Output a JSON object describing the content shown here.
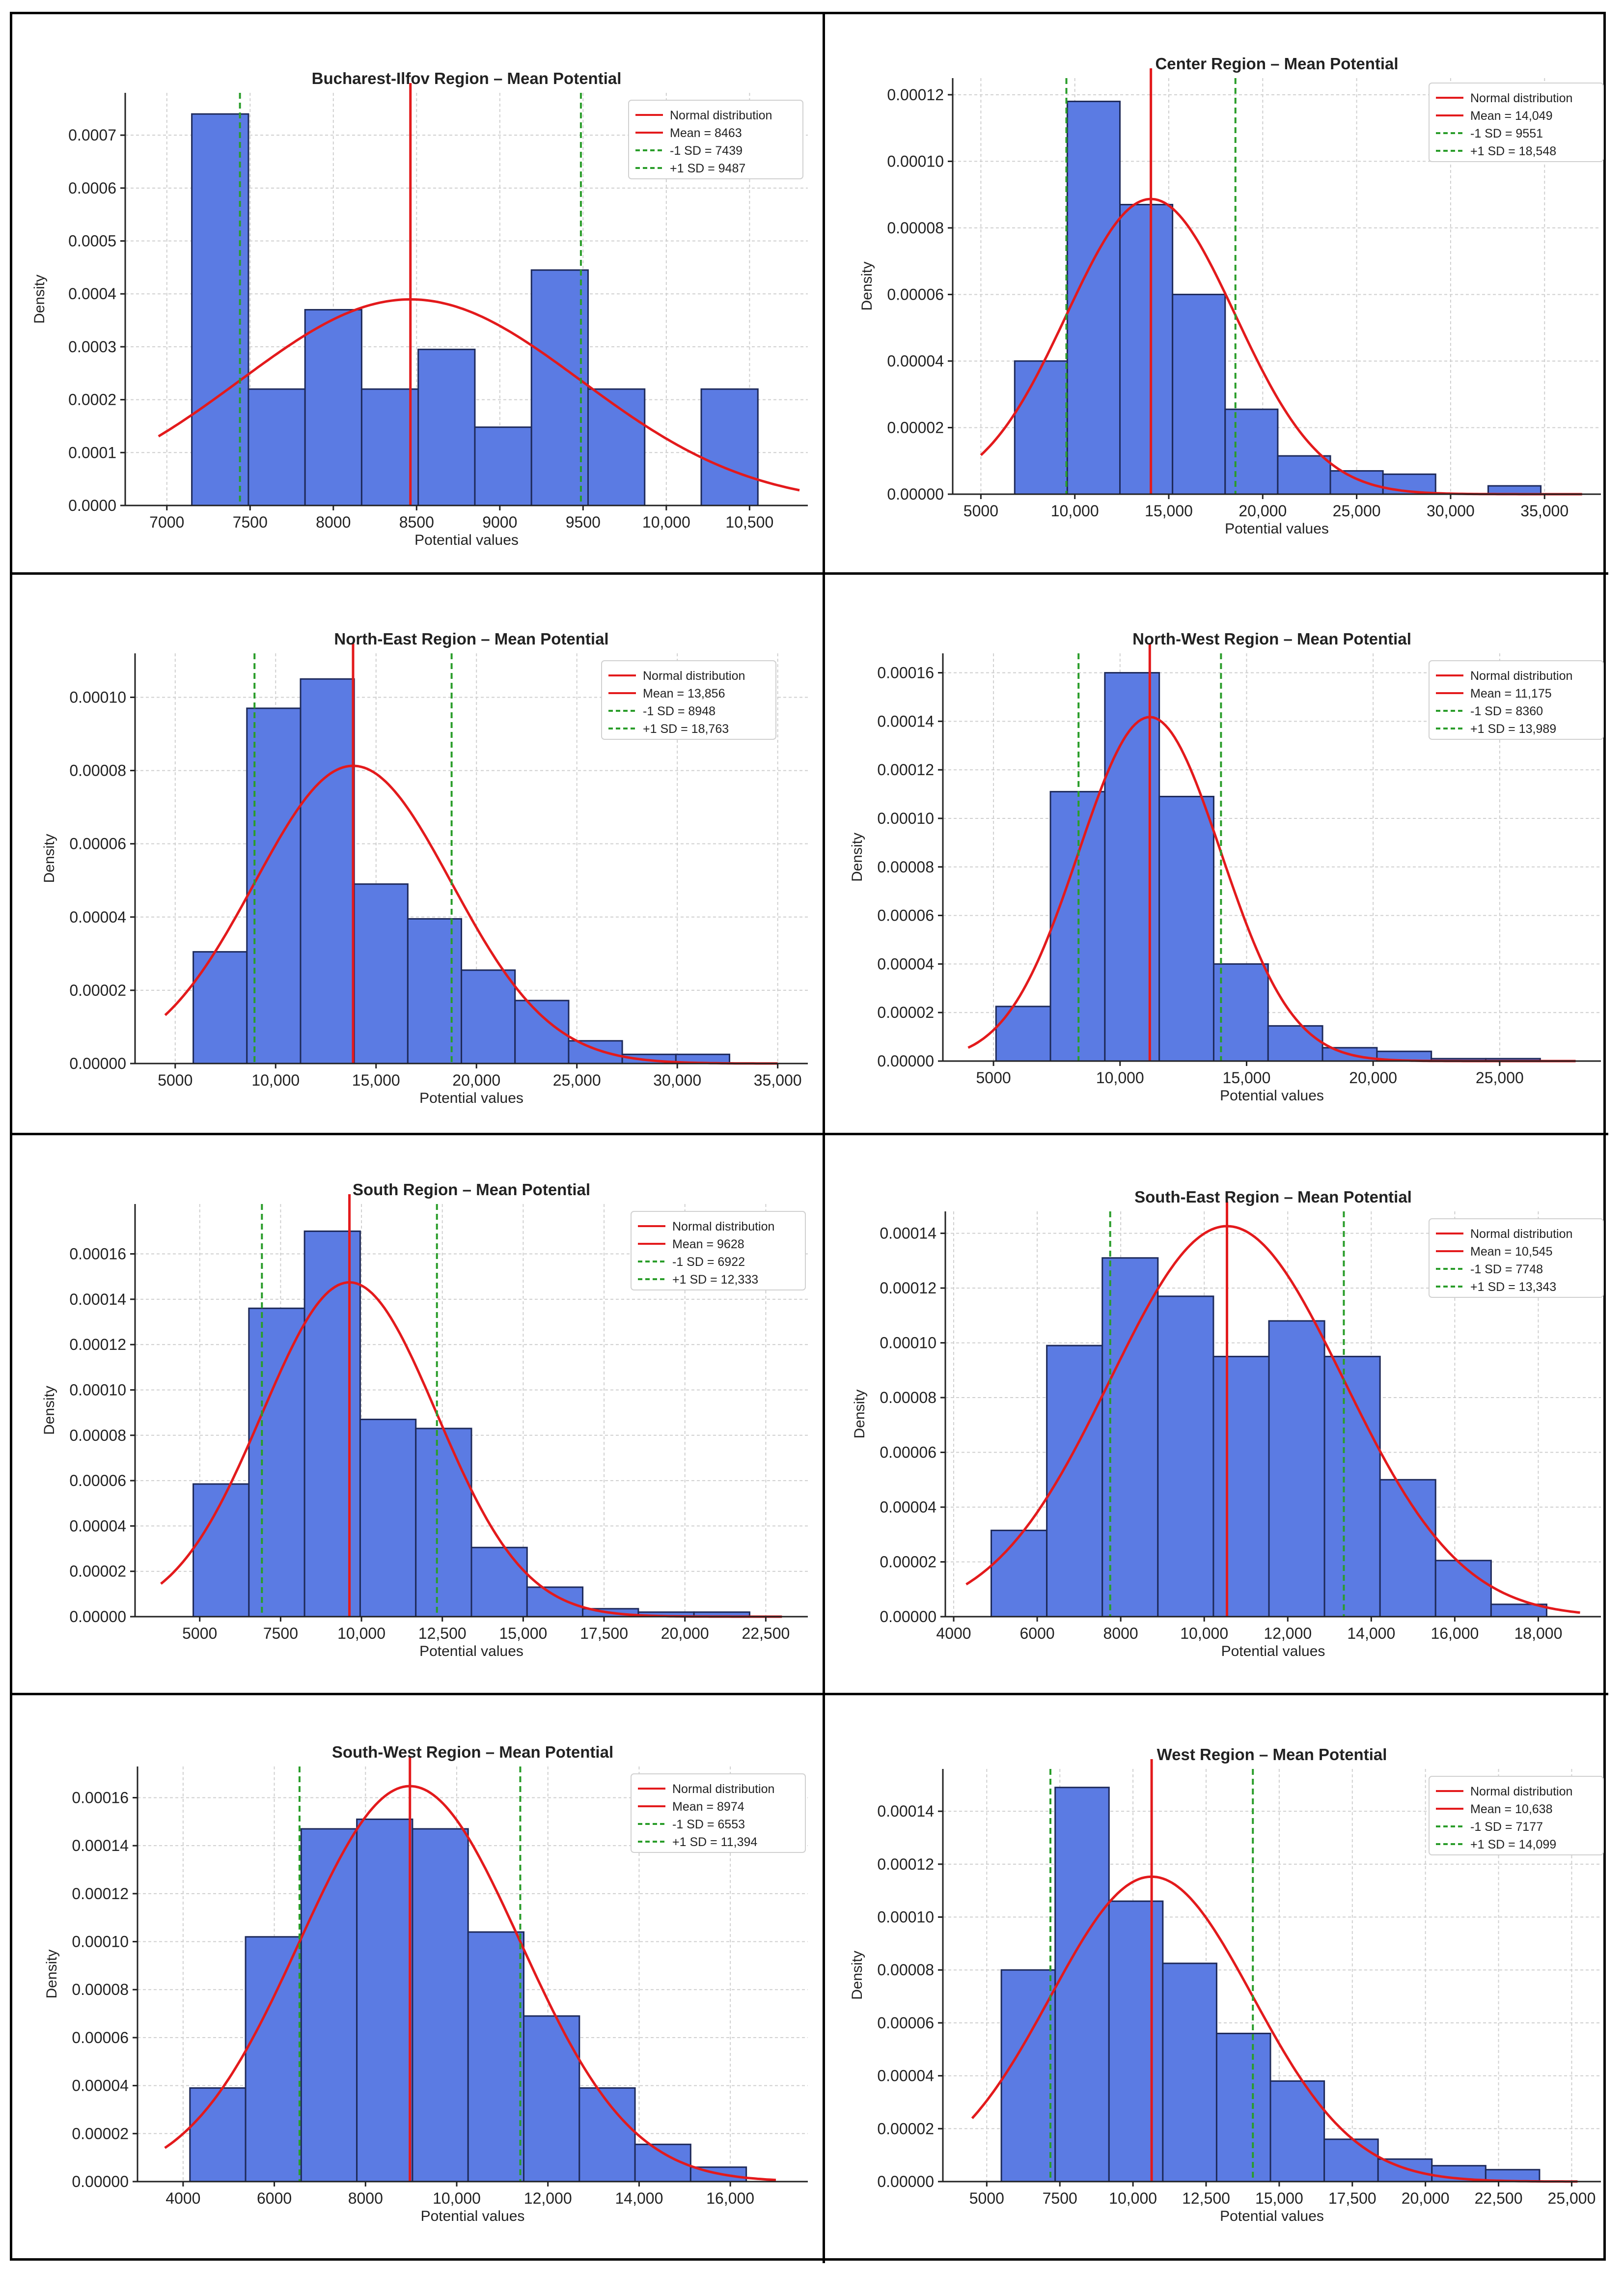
{
  "colors": {
    "bar": "#5b7be3",
    "bar_edge": "#1e2a5a",
    "normal": "#e31a1c",
    "sd": "#2a9d2a",
    "grid": "#cfcfcf"
  },
  "legend_labels": {
    "normal": "Normal distribution"
  },
  "chart_data": [
    {
      "type": "bar",
      "title": "Bucharest-Ilfov Region – Mean Potential",
      "xlabel": "Potential values",
      "ylabel": "Density",
      "xlim": [
        6750,
        10850
      ],
      "ylim": [
        0,
        0.00078
      ],
      "xticks": [
        7000,
        7500,
        8000,
        8500,
        9000,
        9500,
        10000,
        10500
      ],
      "xtick_labels": [
        "7000",
        "7500",
        "8000",
        "8500",
        "9000",
        "9500",
        "10,000",
        "10,500"
      ],
      "yticks": [
        0,
        0.0001,
        0.0002,
        0.0003,
        0.0004,
        0.0005,
        0.0006,
        0.0007
      ],
      "ytick_labels": [
        "0.0000",
        "0.0001",
        "0.0002",
        "0.0003",
        "0.0004",
        "0.0005",
        "0.0006",
        "0.0007"
      ],
      "bin_edges": [
        7150,
        7490,
        7830,
        8170,
        8510,
        8850,
        9190,
        9530,
        9870,
        10210,
        10550
      ],
      "values": [
        0.00074,
        0.00022,
        0.00037,
        0.00022,
        0.000295,
        0.000148,
        0.000445,
        0.00022,
        0,
        0.00022
      ],
      "mean": 8463,
      "sd_minus": 7439,
      "sd_plus": 9487,
      "curve": [
        6950,
        10800
      ],
      "legend": [
        "Normal distribution",
        "Mean = 8463",
        "-1 SD = 7439",
        "+1 SD = 9487"
      ]
    },
    {
      "type": "bar",
      "title": "Center Region – Mean Potential",
      "xlabel": "Potential values",
      "ylabel": "Density",
      "xlim": [
        3500,
        38000
      ],
      "ylim": [
        0,
        0.000125
      ],
      "xticks": [
        5000,
        10000,
        15000,
        20000,
        25000,
        30000,
        35000
      ],
      "xtick_labels": [
        "5000",
        "10,000",
        "15,000",
        "20,000",
        "25,000",
        "30,000",
        "35,000"
      ],
      "yticks": [
        0,
        2e-05,
        4e-05,
        6e-05,
        8e-05,
        0.0001,
        0.00012
      ],
      "ytick_labels": [
        "0.00000",
        "0.00002",
        "0.00004",
        "0.00006",
        "0.00008",
        "0.00010",
        "0.00012"
      ],
      "bin_edges": [
        6800,
        9600,
        12400,
        15200,
        18000,
        20800,
        23600,
        26400,
        29200,
        32000,
        34800
      ],
      "values": [
        4e-05,
        0.000118,
        8.7e-05,
        6e-05,
        2.55e-05,
        1.15e-05,
        7e-06,
        6e-06,
        0,
        2.5e-06
      ],
      "mean": 14049,
      "sd_minus": 9551,
      "sd_plus": 18548,
      "curve": [
        5000,
        37000
      ],
      "legend": [
        "Normal distribution",
        "Mean = 14,049",
        "-1 SD = 9551",
        "+1 SD = 18,548"
      ]
    },
    {
      "type": "bar",
      "title": "North-East Region – Mean Potential",
      "xlabel": "Potential values",
      "ylabel": "Density",
      "xlim": [
        3000,
        36500
      ],
      "ylim": [
        0,
        0.000112
      ],
      "xticks": [
        5000,
        10000,
        15000,
        20000,
        25000,
        30000,
        35000
      ],
      "xtick_labels": [
        "5000",
        "10,000",
        "15,000",
        "20,000",
        "25,000",
        "30,000",
        "35,000"
      ],
      "yticks": [
        0,
        2e-05,
        4e-05,
        6e-05,
        8e-05,
        0.0001
      ],
      "ytick_labels": [
        "0.00000",
        "0.00002",
        "0.00004",
        "0.00006",
        "0.00008",
        "0.00010"
      ],
      "bin_edges": [
        5900,
        8570,
        11240,
        13910,
        16580,
        19250,
        21920,
        24590,
        27260,
        29930,
        32600
      ],
      "values": [
        3.05e-05,
        9.7e-05,
        0.000105,
        4.9e-05,
        3.95e-05,
        2.55e-05,
        1.72e-05,
        6.2e-06,
        2.5e-06,
        2.5e-06
      ],
      "mean": 13856,
      "sd_minus": 8948,
      "sd_plus": 18763,
      "curve": [
        4500,
        35000
      ],
      "legend": [
        "Normal distribution",
        "Mean = 13,856",
        "-1 SD = 8948",
        "+1 SD = 18,763"
      ]
    },
    {
      "type": "bar",
      "title": "North-West Region – Mean Potential",
      "xlabel": "Potential values",
      "ylabel": "Density",
      "xlim": [
        3000,
        29000
      ],
      "ylim": [
        0,
        0.000168
      ],
      "xticks": [
        5000,
        10000,
        15000,
        20000,
        25000
      ],
      "xtick_labels": [
        "5000",
        "10,000",
        "15,000",
        "20,000",
        "25,000"
      ],
      "yticks": [
        0,
        2e-05,
        4e-05,
        6e-05,
        8e-05,
        0.0001,
        0.00012,
        0.00014,
        0.00016
      ],
      "ytick_labels": [
        "0.00000",
        "0.00002",
        "0.00004",
        "0.00006",
        "0.00008",
        "0.00010",
        "0.00012",
        "0.00014",
        "0.00016"
      ],
      "bin_edges": [
        5100,
        7250,
        9400,
        11550,
        13700,
        15850,
        18000,
        20150,
        22300,
        24450,
        26600
      ],
      "values": [
        2.25e-05,
        0.000111,
        0.00016,
        0.000109,
        4e-05,
        1.45e-05,
        5.5e-06,
        4e-06,
        1e-06,
        1e-06
      ],
      "mean": 11175,
      "sd_minus": 8360,
      "sd_plus": 13989,
      "curve": [
        4000,
        28000
      ],
      "legend": [
        "Normal distribution",
        "Mean = 11,175",
        "-1 SD = 8360",
        "+1 SD = 13,989"
      ]
    },
    {
      "type": "bar",
      "title": "South Region – Mean Potential",
      "xlabel": "Potential values",
      "ylabel": "Density",
      "xlim": [
        3000,
        23800
      ],
      "ylim": [
        0,
        0.000182
      ],
      "xticks": [
        5000,
        7500,
        10000,
        12500,
        15000,
        17500,
        20000,
        22500
      ],
      "xtick_labels": [
        "5000",
        "7500",
        "10,000",
        "12,500",
        "15,000",
        "17,500",
        "20,000",
        "22,500"
      ],
      "yticks": [
        0,
        2e-05,
        4e-05,
        6e-05,
        8e-05,
        0.0001,
        0.00012,
        0.00014,
        0.00016
      ],
      "ytick_labels": [
        "0.00000",
        "0.00002",
        "0.00004",
        "0.00006",
        "0.00008",
        "0.00010",
        "0.00012",
        "0.00014",
        "0.00016"
      ],
      "bin_edges": [
        4800,
        6520,
        8240,
        9960,
        11680,
        13400,
        15120,
        16840,
        18560,
        20280,
        22000
      ],
      "values": [
        5.85e-05,
        0.000136,
        0.00017,
        8.7e-05,
        8.3e-05,
        3.05e-05,
        1.3e-05,
        3.5e-06,
        2e-06,
        2e-06
      ],
      "mean": 9628,
      "sd_minus": 6922,
      "sd_plus": 12333,
      "curve": [
        3800,
        23000
      ],
      "legend": [
        "Normal distribution",
        "Mean = 9628",
        "-1 SD = 6922",
        "+1 SD = 12,333"
      ]
    },
    {
      "type": "bar",
      "title": "South-East Region – Mean Potential",
      "xlabel": "Potential values",
      "ylabel": "Density",
      "xlim": [
        3800,
        19500
      ],
      "ylim": [
        0,
        0.000148
      ],
      "xticks": [
        4000,
        6000,
        8000,
        10000,
        12000,
        14000,
        16000,
        18000
      ],
      "xtick_labels": [
        "4000",
        "6000",
        "8000",
        "10,000",
        "12,000",
        "14,000",
        "16,000",
        "18,000"
      ],
      "yticks": [
        0,
        2e-05,
        4e-05,
        6e-05,
        8e-05,
        0.0001,
        0.00012,
        0.00014
      ],
      "ytick_labels": [
        "0.00000",
        "0.00002",
        "0.00004",
        "0.00006",
        "0.00008",
        "0.00010",
        "0.00012",
        "0.00014"
      ],
      "bin_edges": [
        4900,
        6230,
        7560,
        8890,
        10220,
        11550,
        12880,
        14210,
        15540,
        16870,
        18200
      ],
      "values": [
        3.15e-05,
        9.9e-05,
        0.000131,
        0.000117,
        9.5e-05,
        0.000108,
        9.5e-05,
        5e-05,
        2.05e-05,
        4.5e-06
      ],
      "mean": 10545,
      "sd_minus": 7748,
      "sd_plus": 13343,
      "curve": [
        4300,
        19000
      ],
      "legend": [
        "Normal distribution",
        "Mean = 10,545",
        "-1 SD = 7748",
        "+1 SD = 13,343"
      ]
    },
    {
      "type": "bar",
      "title": "South-West Region – Mean Potential",
      "xlabel": "Potential values",
      "ylabel": "Density",
      "xlim": [
        3000,
        17700
      ],
      "ylim": [
        0,
        0.000173
      ],
      "xticks": [
        4000,
        6000,
        8000,
        10000,
        12000,
        14000,
        16000
      ],
      "xtick_labels": [
        "4000",
        "6000",
        "8000",
        "10,000",
        "12,000",
        "14,000",
        "16,000"
      ],
      "yticks": [
        0,
        2e-05,
        4e-05,
        6e-05,
        8e-05,
        0.0001,
        0.00012,
        0.00014,
        0.00016
      ],
      "ytick_labels": [
        "0.00000",
        "0.00002",
        "0.00004",
        "0.00006",
        "0.00008",
        "0.00010",
        "0.00012",
        "0.00014",
        "0.00016"
      ],
      "bin_edges": [
        4150,
        5370,
        6590,
        7810,
        9030,
        10250,
        11470,
        12690,
        13910,
        15130,
        16350
      ],
      "values": [
        3.9e-05,
        0.000102,
        0.000147,
        0.000151,
        0.000147,
        0.000104,
        6.9e-05,
        3.9e-05,
        1.55e-05,
        6e-06
      ],
      "mean": 8974,
      "sd_minus": 6553,
      "sd_plus": 11394,
      "curve": [
        3600,
        17000
      ],
      "legend": [
        "Normal distribution",
        "Mean = 8974",
        "-1 SD = 6553",
        "+1 SD = 11,394"
      ]
    },
    {
      "type": "bar",
      "title": "West Region – Mean Potential",
      "xlabel": "Potential values",
      "ylabel": "Density",
      "xlim": [
        3500,
        26000
      ],
      "ylim": [
        0,
        0.000156
      ],
      "xticks": [
        5000,
        7500,
        10000,
        12500,
        15000,
        17500,
        20000,
        22500,
        25000
      ],
      "xtick_labels": [
        "5000",
        "7500",
        "10,000",
        "12,500",
        "15,000",
        "17,500",
        "20,000",
        "22,500",
        "25,000"
      ],
      "yticks": [
        0,
        2e-05,
        4e-05,
        6e-05,
        8e-05,
        0.0001,
        0.00012,
        0.00014
      ],
      "ytick_labels": [
        "0.00000",
        "0.00002",
        "0.00004",
        "0.00006",
        "0.00008",
        "0.00010",
        "0.00012",
        "0.00014"
      ],
      "bin_edges": [
        5500,
        7340,
        9180,
        11020,
        12860,
        14700,
        16540,
        18380,
        20220,
        22060,
        23900
      ],
      "values": [
        8e-05,
        0.000149,
        0.000106,
        8.25e-05,
        5.6e-05,
        3.8e-05,
        1.6e-05,
        8.5e-06,
        6e-06,
        4.5e-06
      ],
      "mean": 10638,
      "sd_minus": 7177,
      "sd_plus": 14099,
      "curve": [
        4500,
        25200
      ],
      "legend": [
        "Normal distribution",
        "Mean = 10,638",
        "-1 SD = 7177",
        "+1 SD = 14,099"
      ]
    }
  ]
}
